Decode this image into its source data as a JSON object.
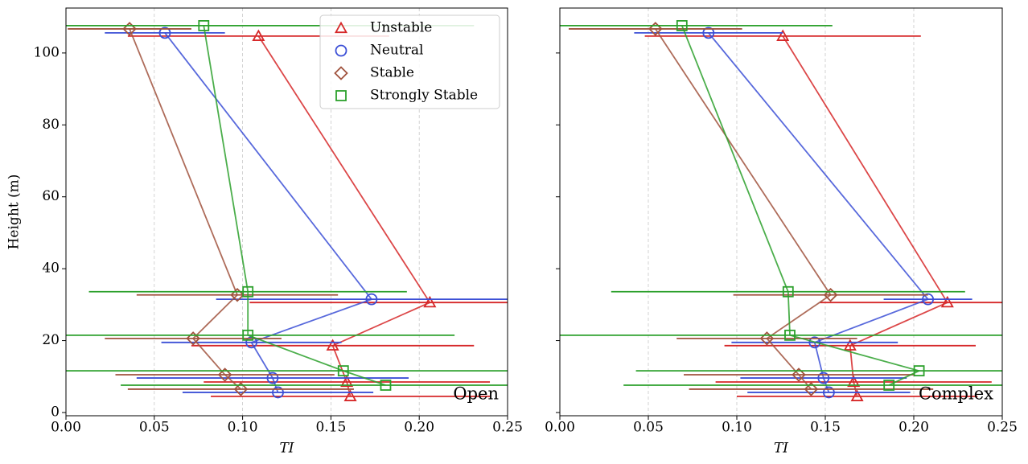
{
  "chart_data": [
    {
      "type": "line",
      "annotation": "Open",
      "xlabel": "TI",
      "ylabel": "Height (m)",
      "xlim": [
        0,
        0.25
      ],
      "ylim": [
        -0.9,
        112.5
      ],
      "xticks": [
        {
          "value": 0,
          "label": "0.00"
        },
        {
          "value": 0.05,
          "label": "0.05"
        },
        {
          "value": 0.1,
          "label": "0.10"
        },
        {
          "value": 0.15,
          "label": "0.15"
        },
        {
          "value": 0.2,
          "label": "0.20"
        },
        {
          "value": 0.25,
          "label": "0.25"
        }
      ],
      "yticks": [
        0,
        20,
        40,
        60,
        80,
        100
      ],
      "grid": "x",
      "legend": "upper right",
      "show_ytick_labels": true,
      "series": [
        {
          "name": "Unstable",
          "color": "#d62728",
          "marker": "triangle",
          "x": [
            0.161,
            0.159,
            0.151,
            0.206,
            0.109
          ],
          "y": [
            4.5,
            8.5,
            18.6,
            30.6,
            104.7
          ],
          "xerr": [
            0.079,
            0.081,
            0.08,
            0.102,
            0.074
          ]
        },
        {
          "name": "Neutral",
          "color": "#3b4fd6",
          "marker": "circle",
          "x": [
            0.12,
            0.117,
            0.105,
            0.173,
            0.056
          ],
          "y": [
            5.6,
            9.6,
            19.5,
            31.5,
            105.6
          ],
          "xerr": [
            0.054,
            0.077,
            0.051,
            0.088,
            0.034
          ]
        },
        {
          "name": "Stable",
          "color": "#a0523d",
          "marker": "diamond",
          "x": [
            0.099,
            0.09,
            0.072,
            0.097,
            0.036
          ],
          "y": [
            6.5,
            10.5,
            20.6,
            32.7,
            106.7
          ],
          "xerr": [
            0.064,
            0.062,
            0.05,
            0.057,
            0.035
          ]
        },
        {
          "name": "Strongly Stable",
          "color": "#2ca02c",
          "marker": "square",
          "x": [
            0.181,
            0.157,
            0.103,
            0.103,
            0.078
          ],
          "y": [
            7.6,
            11.6,
            21.5,
            33.6,
            107.6
          ],
          "xerr": [
            0.15,
            0.16,
            0.117,
            0.09,
            0.153
          ]
        }
      ]
    },
    {
      "type": "line",
      "annotation": "Complex",
      "xlabel": "TI",
      "xlim": [
        0,
        0.25
      ],
      "ylim": [
        -0.9,
        112.5
      ],
      "xticks": [
        {
          "value": 0,
          "label": "0.00"
        },
        {
          "value": 0.05,
          "label": "0.05"
        },
        {
          "value": 0.1,
          "label": "0.10"
        },
        {
          "value": 0.15,
          "label": "0.15"
        },
        {
          "value": 0.2,
          "label": "0.20"
        },
        {
          "value": 0.25,
          "label": "0.25"
        }
      ],
      "yticks": [
        0,
        20,
        40,
        60,
        80,
        100
      ],
      "grid": "x",
      "show_ytick_labels": false,
      "series": [
        {
          "color": "#d62728",
          "marker": "triangle",
          "x": [
            0.168,
            0.166,
            0.164,
            0.219,
            0.126
          ],
          "y": [
            4.5,
            8.5,
            18.6,
            30.6,
            104.7
          ],
          "xerr": [
            0.068,
            0.078,
            0.071,
            0.072,
            0.078
          ]
        },
        {
          "color": "#3b4fd6",
          "marker": "circle",
          "x": [
            0.152,
            0.149,
            0.144,
            0.208,
            0.084
          ],
          "y": [
            5.6,
            9.6,
            19.5,
            31.5,
            105.6
          ],
          "xerr": [
            0.046,
            0.047,
            0.047,
            0.025,
            0.042
          ]
        },
        {
          "color": "#a0523d",
          "marker": "diamond",
          "x": [
            0.142,
            0.135,
            0.117,
            0.153,
            0.054
          ],
          "y": [
            6.5,
            10.5,
            20.6,
            32.7,
            106.7
          ],
          "xerr": [
            0.069,
            0.065,
            0.051,
            0.055,
            0.049
          ]
        },
        {
          "color": "#2ca02c",
          "marker": "square",
          "x": [
            0.186,
            0.203,
            0.13,
            0.129,
            0.069
          ],
          "y": [
            7.6,
            11.6,
            21.5,
            33.6,
            107.6
          ],
          "xerr": [
            0.15,
            0.16,
            0.14,
            0.1,
            0.085
          ]
        }
      ]
    }
  ]
}
